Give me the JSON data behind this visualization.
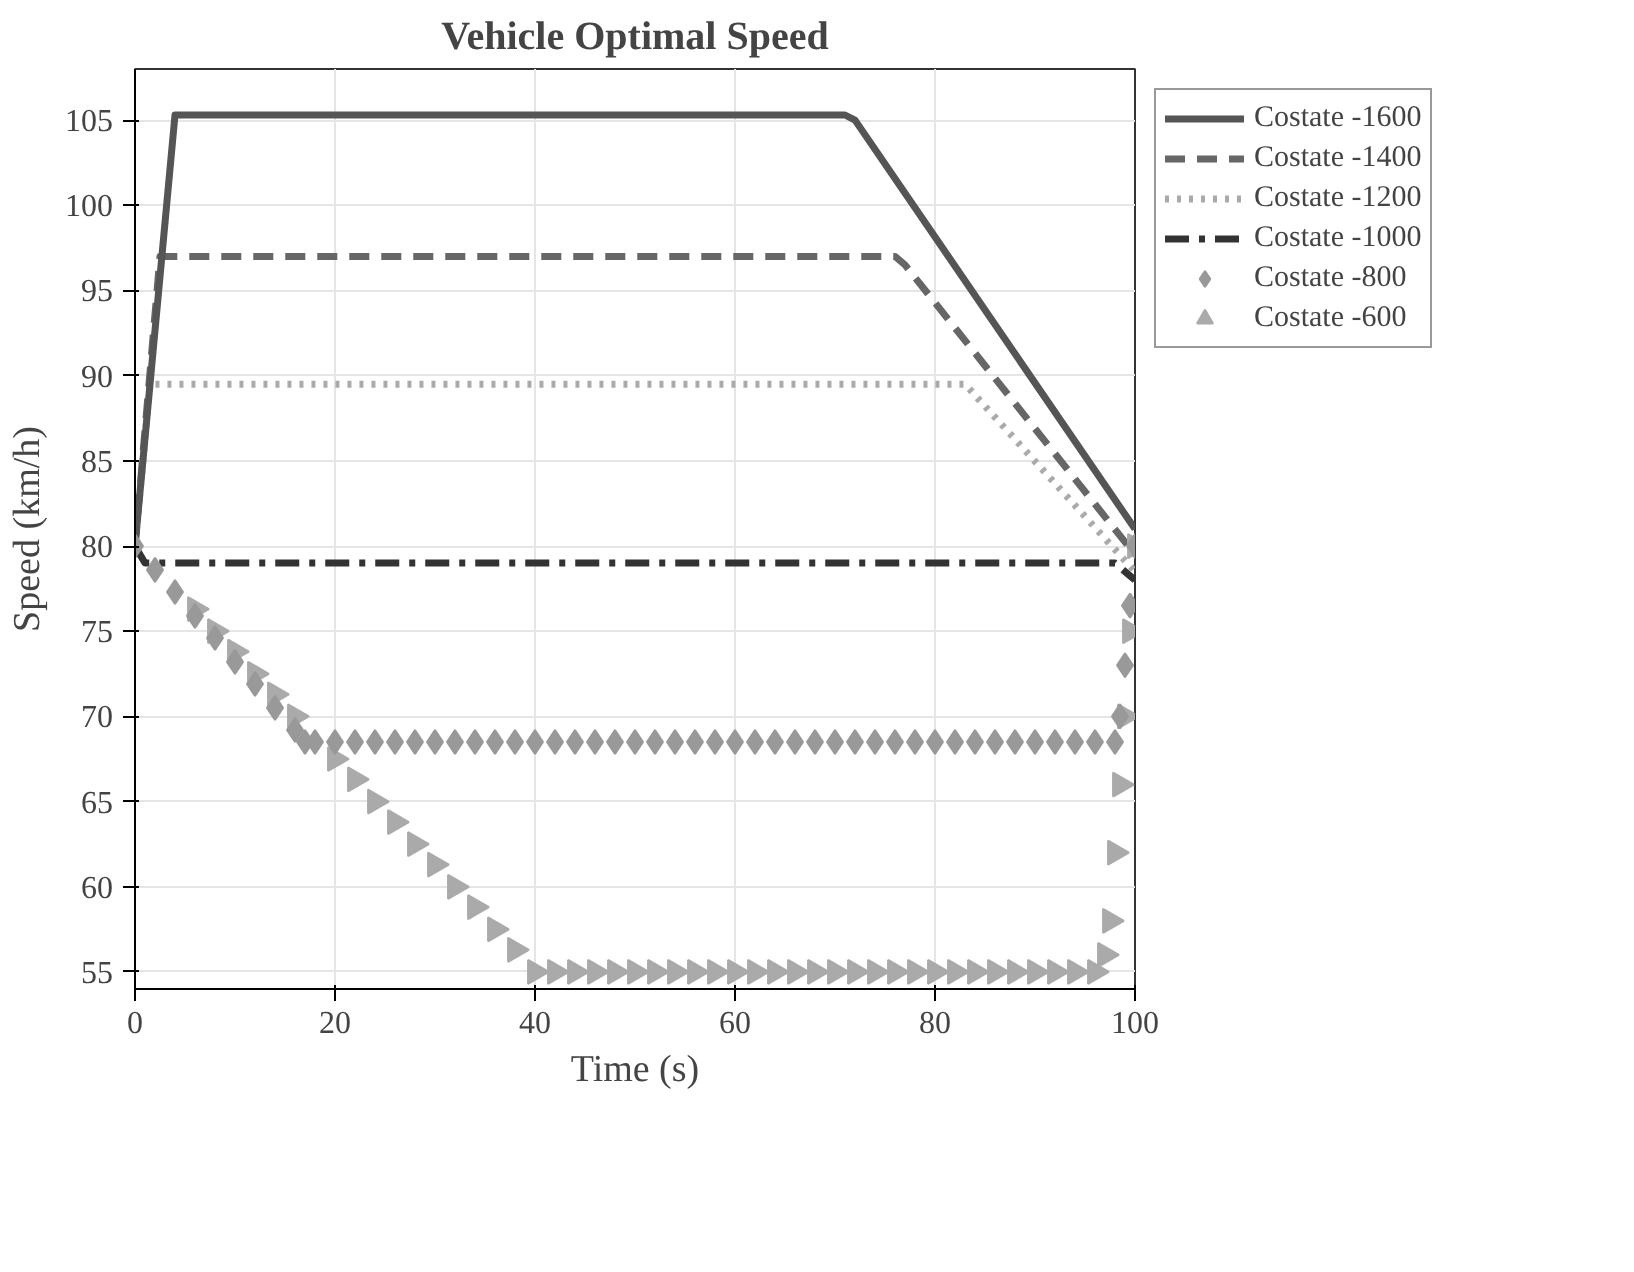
{
  "chart_data": {
    "type": "line",
    "title": "Vehicle Optimal Speed",
    "xlabel": "Time (s)",
    "ylabel": "Speed (km/h)",
    "xlim": [
      0,
      100
    ],
    "ylim": [
      54,
      108
    ],
    "xticks": [
      0,
      20,
      40,
      60,
      80,
      100
    ],
    "yticks": [
      55,
      60,
      65,
      70,
      75,
      80,
      85,
      90,
      95,
      100,
      105
    ],
    "grid": true,
    "legend": "top right",
    "series": [
      {
        "name": "Costate -1600",
        "color": "#555555",
        "line_style": "solid",
        "x": [
          0,
          4,
          71,
          72,
          100
        ],
        "values": [
          80,
          105.3,
          105.3,
          105,
          81
        ]
      },
      {
        "name": "Costate -1400",
        "color": "#666666",
        "line_style": "dashed",
        "x": [
          0,
          2.5,
          76,
          77,
          100
        ],
        "values": [
          80,
          97,
          97,
          96.5,
          79.5
        ]
      },
      {
        "name": "Costate -1200",
        "color": "#aaaaaa",
        "line_style": "dotted",
        "x": [
          0,
          1.5,
          83,
          100
        ],
        "values": [
          80,
          89.5,
          89.5,
          78.5
        ]
      },
      {
        "name": "Costate -1000",
        "color": "#333333",
        "line_style": "dashdot",
        "x": [
          0,
          1,
          98,
          100
        ],
        "values": [
          80,
          79,
          79,
          78
        ]
      },
      {
        "name": "Costate -800",
        "type": "scatter",
        "marker": "diamond",
        "color": "#999999",
        "x": [
          0,
          2,
          4,
          6,
          8,
          10,
          12,
          14,
          16,
          17,
          18,
          20,
          22,
          24,
          26,
          28,
          30,
          32,
          34,
          36,
          38,
          40,
          42,
          44,
          46,
          48,
          50,
          52,
          54,
          56,
          58,
          60,
          62,
          64,
          66,
          68,
          70,
          72,
          74,
          76,
          78,
          80,
          82,
          84,
          86,
          88,
          90,
          92,
          94,
          96,
          98,
          98.5,
          99,
          99.5,
          100
        ],
        "values": [
          80,
          78.6,
          77.3,
          75.9,
          74.6,
          73.2,
          71.9,
          70.5,
          69.2,
          68.5,
          68.5,
          68.5,
          68.5,
          68.5,
          68.5,
          68.5,
          68.5,
          68.5,
          68.5,
          68.5,
          68.5,
          68.5,
          68.5,
          68.5,
          68.5,
          68.5,
          68.5,
          68.5,
          68.5,
          68.5,
          68.5,
          68.5,
          68.5,
          68.5,
          68.5,
          68.5,
          68.5,
          68.5,
          68.5,
          68.5,
          68.5,
          68.5,
          68.5,
          68.5,
          68.5,
          68.5,
          68.5,
          68.5,
          68.5,
          68.5,
          68.5,
          70,
          73,
          76.5,
          80
        ]
      },
      {
        "name": "Costate -600",
        "type": "scatter",
        "marker": "triangle",
        "color": "#aaaaaa",
        "x": [
          6,
          8,
          10,
          12,
          14,
          16,
          20,
          22,
          24,
          26,
          28,
          30,
          32,
          34,
          36,
          38,
          40,
          42,
          44,
          46,
          48,
          50,
          52,
          54,
          56,
          58,
          60,
          62,
          64,
          66,
          68,
          70,
          72,
          74,
          76,
          78,
          80,
          82,
          84,
          86,
          88,
          90,
          92,
          94,
          96,
          97,
          97.5,
          98,
          98.5,
          99,
          99.5,
          100
        ],
        "values": [
          76.3,
          75,
          73.8,
          72.5,
          71.3,
          70,
          67.5,
          66.3,
          65,
          63.8,
          62.5,
          61.3,
          60,
          58.8,
          57.5,
          56.3,
          55,
          55,
          55,
          55,
          55,
          55,
          55,
          55,
          55,
          55,
          55,
          55,
          55,
          55,
          55,
          55,
          55,
          55,
          55,
          55,
          55,
          55,
          55,
          55,
          55,
          55,
          55,
          55,
          55,
          56,
          58,
          62,
          66,
          70,
          75,
          80
        ]
      }
    ]
  }
}
